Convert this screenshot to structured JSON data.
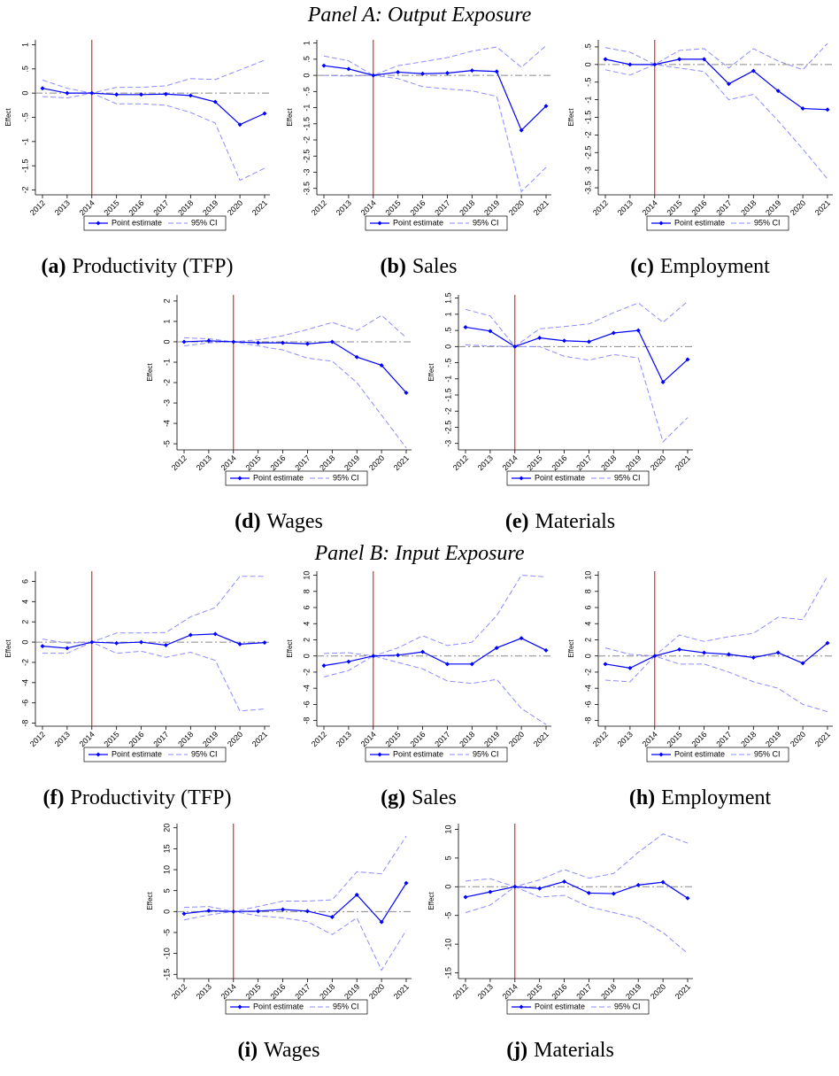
{
  "panel_titles": [
    "Panel A: Output Exposure",
    "Panel B: Input Exposure"
  ],
  "chart_data": [
    {
      "type": "line",
      "label": "(a)",
      "title": "Productivity (TFP)",
      "ylabel": "Effect",
      "categories": [
        "2012",
        "2013",
        "2014",
        "2015",
        "2016",
        "2017",
        "2018",
        "2019",
        "2020",
        "2021"
      ],
      "series": [
        {
          "name": "Point estimate",
          "color": "#0000ff",
          "values": [
            0.1,
            0.0,
            0,
            -0.03,
            -0.03,
            -0.02,
            -0.05,
            -0.18,
            -0.65,
            -0.42
          ]
        },
        {
          "name": "95% CI",
          "color": "#8c8cff",
          "upper": [
            0.27,
            0.1,
            0,
            0.12,
            0.12,
            0.15,
            0.3,
            0.28,
            0.48,
            0.68
          ],
          "lower": [
            -0.07,
            -0.1,
            0,
            -0.22,
            -0.22,
            -0.25,
            -0.4,
            -0.62,
            -1.8,
            -1.55
          ]
        }
      ],
      "ylim": [
        -2.1,
        1.1
      ],
      "yticks": [
        1,
        {
          "value": 0.5,
          "label": ".5"
        },
        0,
        {
          "value": -0.5,
          "label": "-.5"
        },
        -1,
        -1.5,
        -2
      ],
      "vline": "2014",
      "hline": 0
    },
    {
      "type": "line",
      "label": "(b)",
      "title": "Sales",
      "ylabel": "Effect",
      "categories": [
        "2012",
        "2013",
        "2014",
        "2015",
        "2016",
        "2017",
        "2018",
        "2019",
        "2020",
        "2021"
      ],
      "series": [
        {
          "name": "Point estimate",
          "color": "#0000ff",
          "values": [
            0.3,
            0.2,
            0,
            0.1,
            0.05,
            0.07,
            0.15,
            0.12,
            -1.7,
            -0.95
          ]
        },
        {
          "name": "95% CI",
          "color": "#8c8cff",
          "upper": [
            0.6,
            0.45,
            0,
            0.3,
            0.42,
            0.55,
            0.75,
            0.88,
            0.25,
            0.92
          ],
          "lower": [
            0.0,
            -0.02,
            0,
            -0.1,
            -0.35,
            -0.42,
            -0.48,
            -0.65,
            -3.6,
            -2.85
          ]
        }
      ],
      "ylim": [
        -3.7,
        1.1
      ],
      "yticks": [
        1,
        {
          "value": 0.5,
          "label": ".5"
        },
        0,
        {
          "value": -0.5,
          "label": "-.5"
        },
        -1,
        -1.5,
        -2,
        -2.5,
        -3,
        -3.5
      ],
      "vline": "2014",
      "hline": 0
    },
    {
      "type": "line",
      "label": "(c)",
      "title": "Employment",
      "ylabel": "Effect",
      "categories": [
        "2012",
        "2013",
        "2014",
        "2015",
        "2016",
        "2017",
        "2018",
        "2019",
        "2020",
        "2021"
      ],
      "series": [
        {
          "name": "Point estimate",
          "color": "#0000ff",
          "values": [
            0.15,
            0,
            0,
            0.15,
            0.15,
            -0.55,
            -0.18,
            -0.75,
            -1.25,
            -1.28
          ]
        },
        {
          "name": "95% CI",
          "color": "#8c8cff",
          "upper": [
            0.48,
            0.35,
            0,
            0.4,
            0.45,
            -0.1,
            0.45,
            0.1,
            -0.15,
            0.6
          ],
          "lower": [
            -0.15,
            -0.3,
            0,
            -0.1,
            -0.2,
            -1.0,
            -0.85,
            -1.6,
            -2.4,
            -3.25
          ]
        }
      ],
      "ylim": [
        -3.7,
        0.7
      ],
      "yticks": [
        {
          "value": 0.5,
          "label": ".5"
        },
        0,
        {
          "value": -0.5,
          "label": "-.5"
        },
        -1,
        -1.5,
        -2,
        -2.5,
        -3,
        -3.5
      ],
      "vline": "2014",
      "hline": 0
    },
    {
      "type": "line",
      "label": "(d)",
      "title": "Wages",
      "ylabel": "Effect",
      "categories": [
        "2012",
        "2013",
        "2014",
        "2015",
        "2016",
        "2017",
        "2018",
        "2019",
        "2020",
        "2021"
      ],
      "series": [
        {
          "name": "Point estimate",
          "color": "#0000ff",
          "values": [
            0,
            0.05,
            0,
            -0.05,
            -0.05,
            -0.1,
            0,
            -0.75,
            -1.15,
            -2.5
          ]
        },
        {
          "name": "95% CI",
          "color": "#8c8cff",
          "upper": [
            0.2,
            0.15,
            0,
            0.1,
            0.3,
            0.6,
            0.95,
            0.55,
            1.3,
            0.2
          ],
          "lower": [
            -0.2,
            -0.05,
            0,
            -0.2,
            -0.4,
            -0.8,
            -0.95,
            -2,
            -3.6,
            -5.2
          ]
        }
      ],
      "ylim": [
        -5.3,
        2.3
      ],
      "yticks": [
        2,
        1,
        0,
        -1,
        -2,
        -3,
        -4,
        -5
      ],
      "vline": "2014",
      "hline": 0
    },
    {
      "type": "line",
      "label": "(e)",
      "title": "Materials",
      "ylabel": "Effect",
      "categories": [
        "2012",
        "2013",
        "2014",
        "2015",
        "2016",
        "2017",
        "2018",
        "2019",
        "2020",
        "2021"
      ],
      "series": [
        {
          "name": "Point estimate",
          "color": "#0000ff",
          "values": [
            0.6,
            0.48,
            0,
            0.27,
            0.18,
            0.15,
            0.42,
            0.5,
            -1.1,
            -0.4
          ]
        },
        {
          "name": "95% CI",
          "color": "#8c8cff",
          "upper": [
            1.15,
            0.95,
            0,
            0.55,
            0.62,
            0.7,
            1.05,
            1.35,
            0.75,
            1.4
          ],
          "lower": [
            0.05,
            0.02,
            0,
            0.0,
            -0.3,
            -0.42,
            -0.25,
            -0.35,
            -2.95,
            -2.2
          ]
        }
      ],
      "ylim": [
        -3.2,
        1.6
      ],
      "yticks": [
        1.5,
        1,
        {
          "value": 0.5,
          "label": ".5"
        },
        0,
        {
          "value": -0.5,
          "label": "-.5"
        },
        -1,
        -1.5,
        -2,
        -2.5,
        -3
      ],
      "vline": "2014",
      "hline": 0
    },
    {
      "type": "line",
      "label": "(f)",
      "title": "Productivity (TFP)",
      "ylabel": "Effect",
      "categories": [
        "2012",
        "2013",
        "2014",
        "2015",
        "2016",
        "2017",
        "2018",
        "2019",
        "2020",
        "2021"
      ],
      "series": [
        {
          "name": "Point estimate",
          "color": "#0000ff",
          "values": [
            -0.4,
            -0.6,
            0,
            -0.1,
            0,
            -0.3,
            0.7,
            0.8,
            -0.2,
            -0.05
          ]
        },
        {
          "name": "95% CI",
          "color": "#8c8cff",
          "upper": [
            0.3,
            -0.1,
            0,
            0.9,
            0.9,
            0.95,
            2.5,
            3.4,
            6.5,
            6.5
          ],
          "lower": [
            -1.1,
            -1.1,
            0,
            -1.1,
            -0.9,
            -1.5,
            -1.0,
            -1.8,
            -6.8,
            -6.6
          ]
        }
      ],
      "ylim": [
        -8.3,
        7
      ],
      "yticks": [
        6,
        4,
        2,
        0,
        -2,
        -4,
        -6,
        -8
      ],
      "vline": "2014",
      "hline": 0
    },
    {
      "type": "line",
      "label": "(g)",
      "title": "Sales",
      "ylabel": "Effect",
      "categories": [
        "2012",
        "2013",
        "2014",
        "2015",
        "2016",
        "2017",
        "2018",
        "2019",
        "2020",
        "2021"
      ],
      "series": [
        {
          "name": "Point estimate",
          "color": "#0000ff",
          "values": [
            -1.2,
            -0.7,
            0,
            0.1,
            0.5,
            -1,
            -1,
            1,
            2.2,
            0.7
          ]
        },
        {
          "name": "95% CI",
          "color": "#8c8cff",
          "upper": [
            0.3,
            0.4,
            0,
            1,
            2.5,
            1.3,
            1.7,
            5,
            10,
            9.8
          ],
          "lower": [
            -2.6,
            -1.8,
            0,
            -0.8,
            -1.6,
            -3.1,
            -3.4,
            -2.9,
            -6.5,
            -8.5
          ]
        }
      ],
      "ylim": [
        -8.7,
        10.5
      ],
      "yticks": [
        10,
        8,
        6,
        4,
        2,
        0,
        -2,
        -4,
        -6,
        -8
      ],
      "vline": "2014",
      "hline": 0
    },
    {
      "type": "line",
      "label": "(h)",
      "title": "Employment",
      "ylabel": "Effect",
      "categories": [
        "2012",
        "2013",
        "2014",
        "2015",
        "2016",
        "2017",
        "2018",
        "2019",
        "2020",
        "2021"
      ],
      "series": [
        {
          "name": "Point estimate",
          "color": "#0000ff",
          "values": [
            -1,
            -1.5,
            0,
            0.8,
            0.4,
            0.2,
            -0.2,
            0.4,
            -0.9,
            1.6
          ]
        },
        {
          "name": "95% CI",
          "color": "#8c8cff",
          "upper": [
            1,
            0.2,
            0,
            2.6,
            1.8,
            2.4,
            2.8,
            4.8,
            4.5,
            9.9
          ],
          "lower": [
            -3,
            -3.2,
            0,
            -1,
            -1,
            -2,
            -3.2,
            -4,
            -6,
            -6.9
          ]
        }
      ],
      "ylim": [
        -8.7,
        10.5
      ],
      "yticks": [
        10,
        8,
        6,
        4,
        2,
        0,
        -2,
        -4,
        -6,
        -8
      ],
      "vline": "2014",
      "hline": 0
    },
    {
      "type": "line",
      "label": "(i)",
      "title": "Wages",
      "ylabel": "Effect",
      "categories": [
        "2012",
        "2013",
        "2014",
        "2015",
        "2016",
        "2017",
        "2018",
        "2019",
        "2020",
        "2021"
      ],
      "series": [
        {
          "name": "Point estimate",
          "color": "#0000ff",
          "values": [
            -0.5,
            0.2,
            0,
            0.1,
            0.5,
            0.1,
            -1.3,
            4,
            -2.5,
            6.8
          ]
        },
        {
          "name": "95% CI",
          "color": "#8c8cff",
          "upper": [
            1,
            1.2,
            0,
            1.2,
            2.5,
            2.5,
            2.8,
            9.5,
            9,
            18
          ],
          "lower": [
            -2,
            -0.8,
            0,
            -1,
            -1.5,
            -2.4,
            -5.5,
            -1.5,
            -14,
            -4.5
          ]
        }
      ],
      "ylim": [
        -16,
        21
      ],
      "yticks": [
        20,
        15,
        10,
        5,
        0,
        -5,
        -10,
        -15
      ],
      "vline": "2014",
      "hline": 0
    },
    {
      "type": "line",
      "label": "(j)",
      "title": "Materials",
      "ylabel": "Effect",
      "categories": [
        "2012",
        "2013",
        "2014",
        "2015",
        "2016",
        "2017",
        "2018",
        "2019",
        "2020",
        "2021"
      ],
      "series": [
        {
          "name": "Point estimate",
          "color": "#0000ff",
          "values": [
            -1.8,
            -0.9,
            0,
            -0.3,
            0.9,
            -1.1,
            -1.2,
            0.3,
            0.8,
            -2
          ]
        },
        {
          "name": "95% CI",
          "color": "#8c8cff",
          "upper": [
            1,
            1.4,
            0,
            1.2,
            3,
            1.5,
            2.3,
            6,
            9.2,
            7.6
          ],
          "lower": [
            -4.5,
            -3.2,
            0,
            -1.8,
            -1.5,
            -3.5,
            -4.5,
            -5.5,
            -8,
            -11.6
          ]
        }
      ],
      "ylim": [
        -16,
        11
      ],
      "yticks": [
        10,
        5,
        0,
        -5,
        -10,
        -15
      ],
      "vline": "2014",
      "hline": 0
    }
  ]
}
